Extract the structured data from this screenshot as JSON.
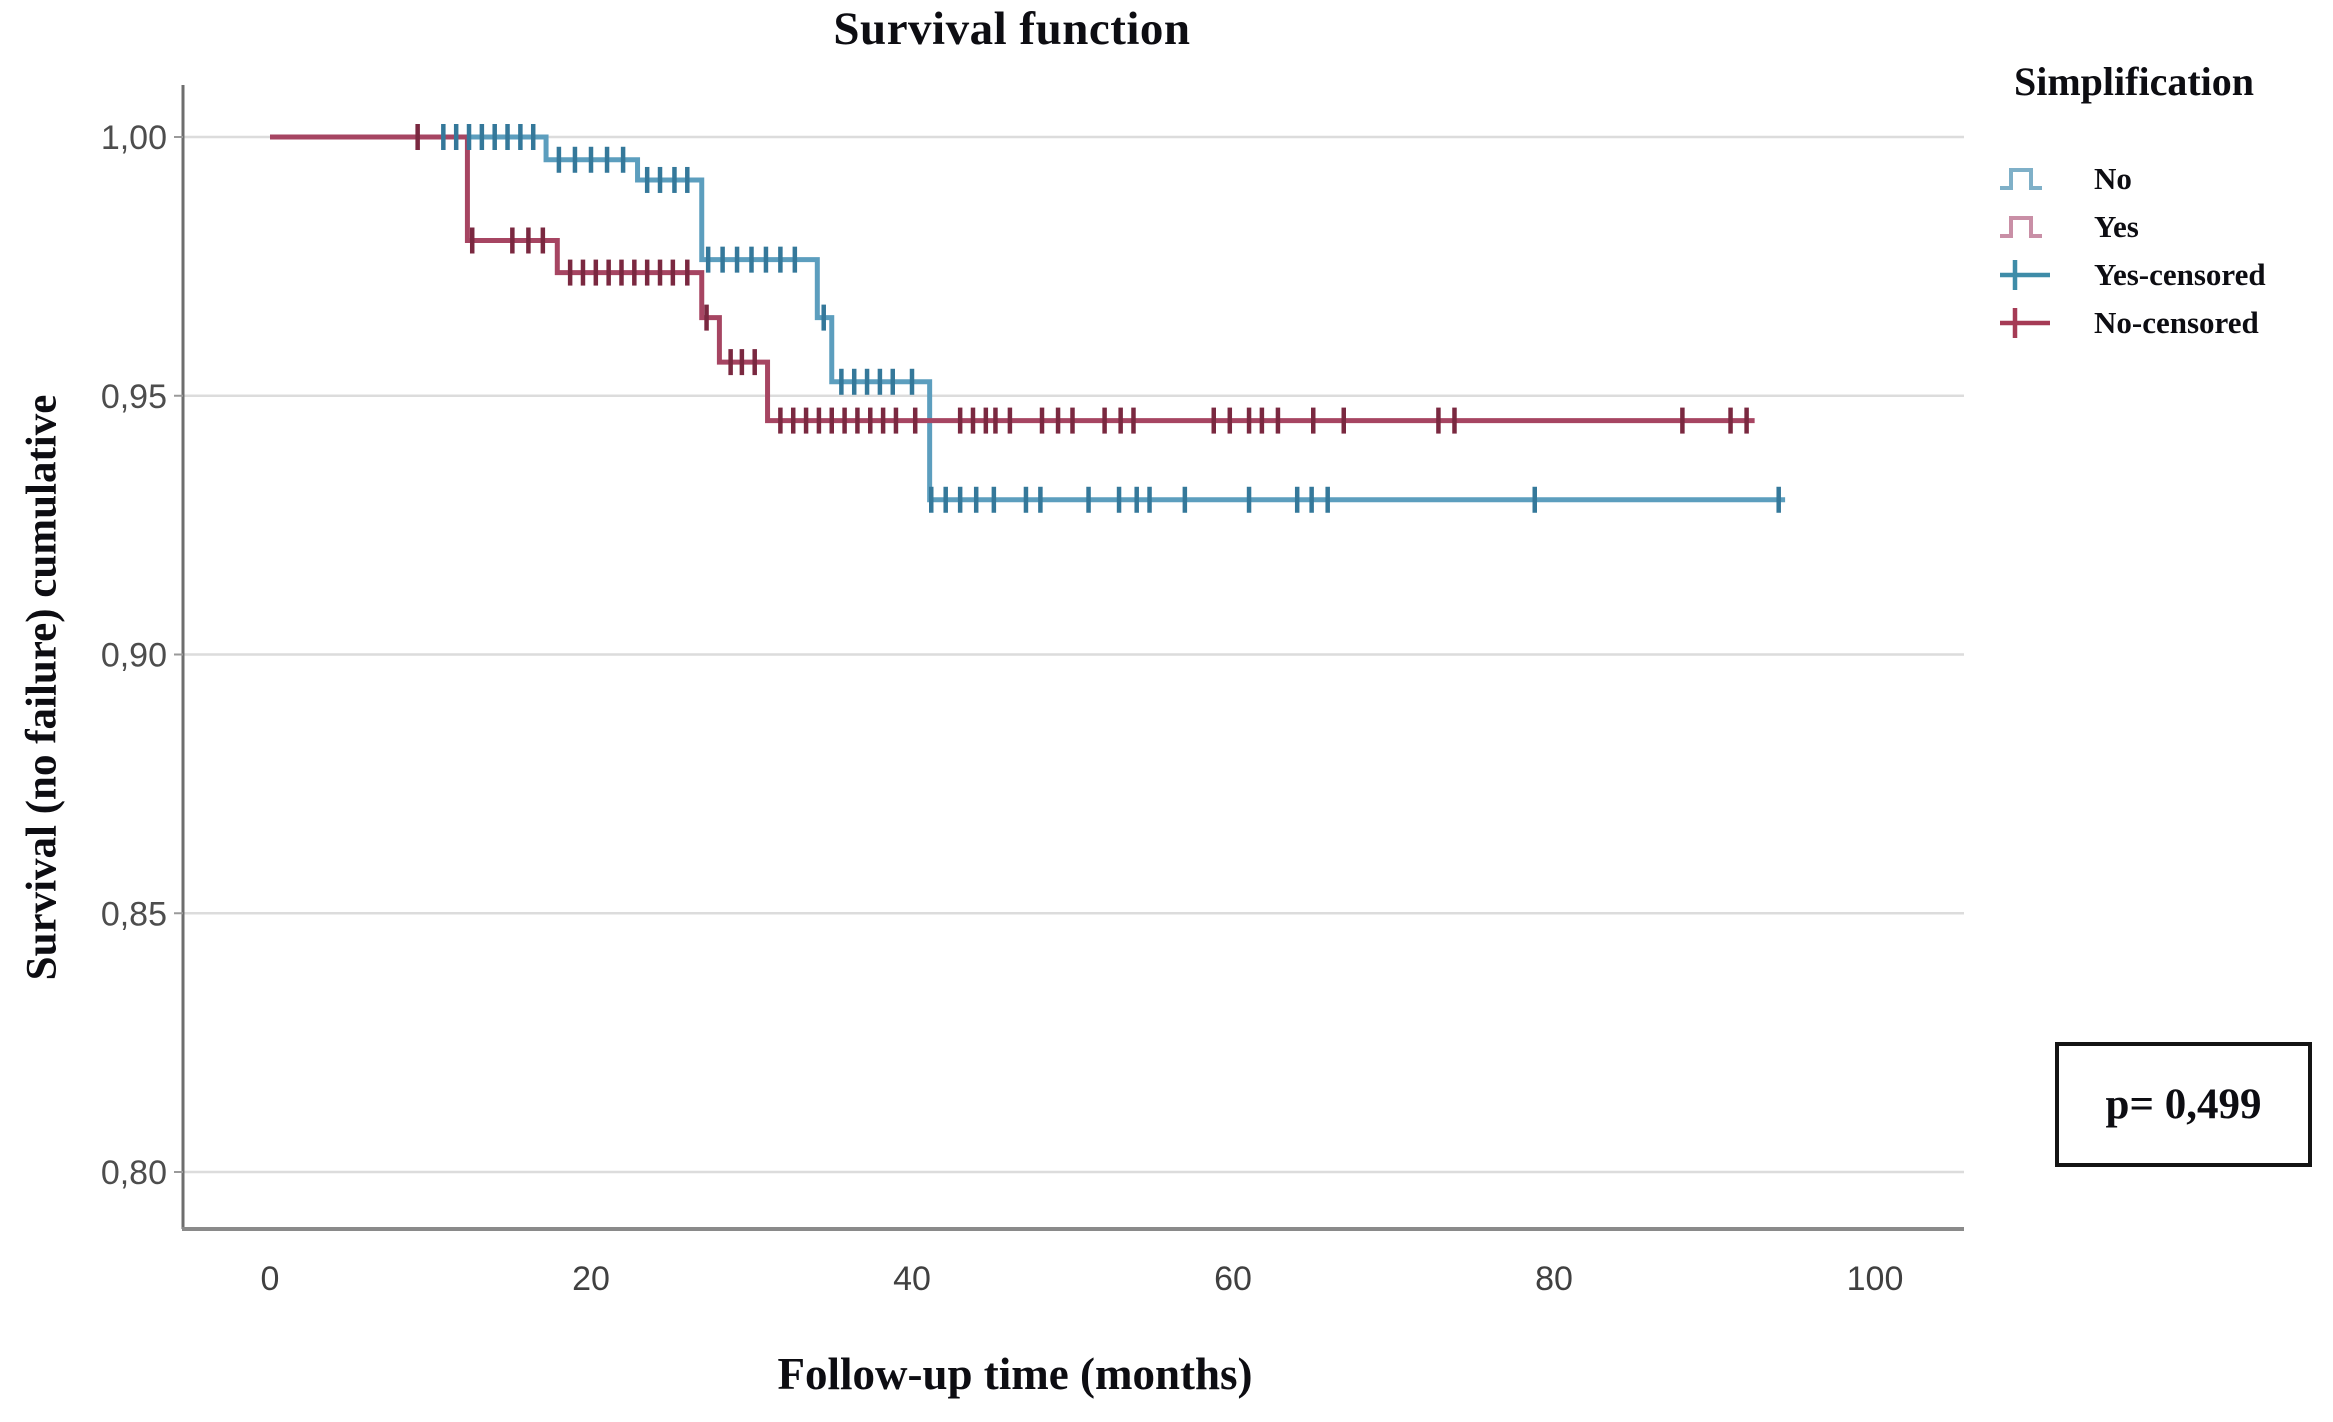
{
  "p_value_label": "p= 0,499",
  "legend": {
    "title": "Simplification",
    "items": [
      {
        "label": "No",
        "type": "step",
        "color": "#7FB0C8"
      },
      {
        "label": "Yes",
        "type": "step",
        "color": "#C98FA6"
      },
      {
        "label": "Yes-censored",
        "type": "plus",
        "color": "#3E8CA8"
      },
      {
        "label": "No-censored",
        "type": "plus",
        "color": "#A53B55"
      }
    ]
  },
  "chart_data": {
    "type": "line",
    "subtype": "kaplan-meier-step-survival",
    "title": "Survival function",
    "xlabel": "Follow-up time (months)",
    "ylabel": "Survival (no failure) cumulative",
    "xlim": [
      -5.4,
      105.5
    ],
    "ylim": [
      0.789,
      1.01
    ],
    "grid": "horizontal",
    "legend_position": "right",
    "annotation": "p= 0,499",
    "xticks": {
      "values": [
        0,
        20,
        40,
        60,
        80,
        100
      ],
      "labels": [
        "0",
        "20",
        "40",
        "60",
        "80",
        "100"
      ]
    },
    "yticks": {
      "values": [
        1.0,
        0.95,
        0.9,
        0.85,
        0.8
      ],
      "labels": [
        "1,00",
        "0,95",
        "0,90",
        "0,85",
        "0,80"
      ]
    },
    "series": [
      {
        "name": "No",
        "line_color": "#5C9EBE",
        "censor_color": "#34789A",
        "steps": [
          [
            0,
            1.0
          ],
          [
            17.2,
            1.0
          ],
          [
            17.2,
            0.9956
          ],
          [
            22.9,
            0.9956
          ],
          [
            22.9,
            0.9917
          ],
          [
            26.9,
            0.9917
          ],
          [
            26.9,
            0.9763
          ],
          [
            34.1,
            0.9763
          ],
          [
            34.1,
            0.9651
          ],
          [
            35.0,
            0.9651
          ],
          [
            35.0,
            0.9527
          ],
          [
            41.1,
            0.9527
          ],
          [
            41.1,
            0.9299
          ],
          [
            94.4,
            0.9299
          ]
        ],
        "censored": [
          [
            10.8,
            1.0
          ],
          [
            11.6,
            1.0
          ],
          [
            12.4,
            1.0
          ],
          [
            13.2,
            1.0
          ],
          [
            14.0,
            1.0
          ],
          [
            14.8,
            1.0
          ],
          [
            15.6,
            1.0
          ],
          [
            16.4,
            1.0
          ],
          [
            18.0,
            0.9956
          ],
          [
            19.0,
            0.9956
          ],
          [
            20.0,
            0.9956
          ],
          [
            21.0,
            0.9956
          ],
          [
            22.0,
            0.9956
          ],
          [
            23.5,
            0.9917
          ],
          [
            24.3,
            0.9917
          ],
          [
            25.2,
            0.9917
          ],
          [
            26.0,
            0.9917
          ],
          [
            27.3,
            0.9763
          ],
          [
            28.2,
            0.9763
          ],
          [
            29.1,
            0.9763
          ],
          [
            30.0,
            0.9763
          ],
          [
            30.9,
            0.9763
          ],
          [
            31.8,
            0.9763
          ],
          [
            32.7,
            0.9763
          ],
          [
            34.5,
            0.9651
          ],
          [
            35.6,
            0.9527
          ],
          [
            36.4,
            0.9527
          ],
          [
            37.2,
            0.9527
          ],
          [
            38.0,
            0.9527
          ],
          [
            38.8,
            0.9527
          ],
          [
            40.0,
            0.9527
          ],
          [
            41.2,
            0.9299
          ],
          [
            42.1,
            0.9299
          ],
          [
            43.0,
            0.9299
          ],
          [
            44.0,
            0.9299
          ],
          [
            45.1,
            0.9299
          ],
          [
            47.1,
            0.9299
          ],
          [
            48.0,
            0.9299
          ],
          [
            51.0,
            0.9299
          ],
          [
            52.9,
            0.9299
          ],
          [
            54.0,
            0.9299
          ],
          [
            54.8,
            0.9299
          ],
          [
            57.0,
            0.9299
          ],
          [
            61.0,
            0.9299
          ],
          [
            64.0,
            0.9299
          ],
          [
            64.9,
            0.9299
          ],
          [
            65.9,
            0.9299
          ],
          [
            78.8,
            0.9299
          ],
          [
            94.0,
            0.9299
          ]
        ]
      },
      {
        "name": "Yes",
        "line_color": "#A64562",
        "censor_color": "#7A2840",
        "steps": [
          [
            0,
            1.0
          ],
          [
            12.3,
            1.0
          ],
          [
            12.3,
            0.98
          ],
          [
            17.9,
            0.98
          ],
          [
            17.9,
            0.9738
          ],
          [
            26.9,
            0.9738
          ],
          [
            26.9,
            0.9651
          ],
          [
            28.0,
            0.9651
          ],
          [
            28.0,
            0.9565
          ],
          [
            31.0,
            0.9565
          ],
          [
            31.0,
            0.9452
          ],
          [
            92.5,
            0.9452
          ]
        ],
        "censored": [
          [
            9.2,
            1.0
          ],
          [
            12.6,
            0.98
          ],
          [
            15.1,
            0.98
          ],
          [
            16.1,
            0.98
          ],
          [
            17.0,
            0.98
          ],
          [
            18.7,
            0.9738
          ],
          [
            19.5,
            0.9738
          ],
          [
            20.3,
            0.9738
          ],
          [
            21.1,
            0.9738
          ],
          [
            21.9,
            0.9738
          ],
          [
            22.7,
            0.9738
          ],
          [
            23.5,
            0.9738
          ],
          [
            24.3,
            0.9738
          ],
          [
            25.1,
            0.9738
          ],
          [
            26.0,
            0.9738
          ],
          [
            27.2,
            0.9651
          ],
          [
            28.7,
            0.9565
          ],
          [
            29.4,
            0.9565
          ],
          [
            30.2,
            0.9565
          ],
          [
            31.8,
            0.9452
          ],
          [
            32.6,
            0.9452
          ],
          [
            33.4,
            0.9452
          ],
          [
            34.2,
            0.9452
          ],
          [
            35.0,
            0.9452
          ],
          [
            35.8,
            0.9452
          ],
          [
            36.6,
            0.9452
          ],
          [
            37.4,
            0.9452
          ],
          [
            38.2,
            0.9452
          ],
          [
            39.0,
            0.9452
          ],
          [
            40.2,
            0.9452
          ],
          [
            43.0,
            0.9452
          ],
          [
            43.8,
            0.9452
          ],
          [
            44.6,
            0.9452
          ],
          [
            45.2,
            0.9452
          ],
          [
            46.1,
            0.9452
          ],
          [
            48.1,
            0.9452
          ],
          [
            49.1,
            0.9452
          ],
          [
            50.0,
            0.9452
          ],
          [
            52.0,
            0.9452
          ],
          [
            53.0,
            0.9452
          ],
          [
            53.8,
            0.9452
          ],
          [
            58.8,
            0.9452
          ],
          [
            59.8,
            0.9452
          ],
          [
            61.0,
            0.9452
          ],
          [
            61.8,
            0.9452
          ],
          [
            62.8,
            0.9452
          ],
          [
            65.0,
            0.9452
          ],
          [
            66.9,
            0.9452
          ],
          [
            72.8,
            0.9452
          ],
          [
            73.8,
            0.9452
          ],
          [
            88.0,
            0.9452
          ],
          [
            91.0,
            0.9452
          ],
          [
            92.0,
            0.9452
          ]
        ]
      }
    ]
  }
}
